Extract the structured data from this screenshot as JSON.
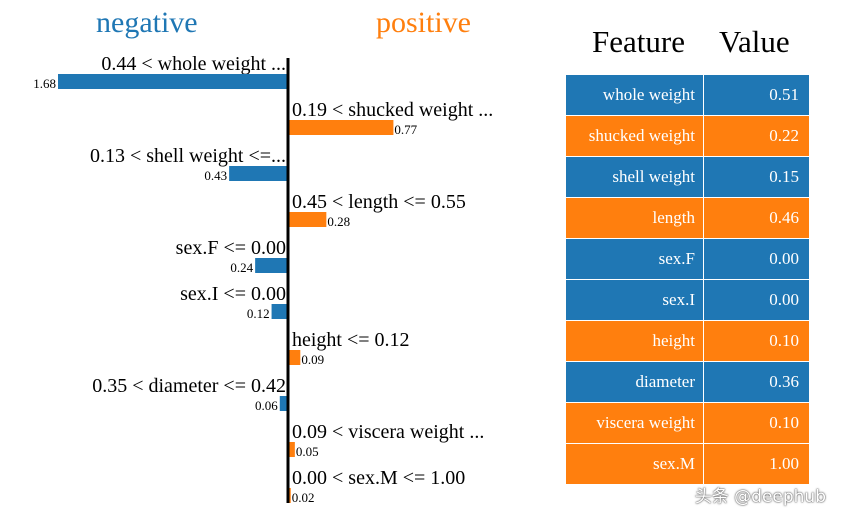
{
  "headings": {
    "negative": "negative",
    "positive": "positive"
  },
  "colors": {
    "negative": "#1f77b4",
    "positive": "#ff7f0e",
    "axis": "#000000"
  },
  "chart_data": {
    "type": "bar",
    "orientation": "horizontal",
    "xlim": [
      -1.68,
      1.68
    ],
    "categories": [
      "0.44 < whole weight ...",
      "0.19 < shucked weight ...",
      "0.13 < shell weight <=...",
      "0.45 < length <= 0.55",
      "sex.F <= 0.00",
      "sex.I <= 0.00",
      "height <= 0.12",
      "0.35 < diameter <= 0.42",
      "0.09 < viscera weight ...",
      "0.00 < sex.M <= 1.00"
    ],
    "values": [
      -1.68,
      0.77,
      -0.43,
      0.28,
      -0.24,
      -0.12,
      0.09,
      -0.06,
      0.05,
      0.02
    ],
    "value_labels": [
      "1.68",
      "0.77",
      "0.43",
      "0.28",
      "0.24",
      "0.12",
      "0.09",
      "0.06",
      "0.05",
      "0.02"
    ]
  },
  "table": {
    "headers": {
      "feature": "Feature",
      "value": "Value"
    },
    "rows": [
      {
        "feature": "whole weight",
        "value": "0.51",
        "color": "#1f77b4"
      },
      {
        "feature": "shucked weight",
        "value": "0.22",
        "color": "#ff7f0e"
      },
      {
        "feature": "shell weight",
        "value": "0.15",
        "color": "#1f77b4"
      },
      {
        "feature": "length",
        "value": "0.46",
        "color": "#ff7f0e"
      },
      {
        "feature": "sex.F",
        "value": "0.00",
        "color": "#1f77b4"
      },
      {
        "feature": "sex.I",
        "value": "0.00",
        "color": "#1f77b4"
      },
      {
        "feature": "height",
        "value": "0.10",
        "color": "#ff7f0e"
      },
      {
        "feature": "diameter",
        "value": "0.36",
        "color": "#1f77b4"
      },
      {
        "feature": "viscera weight",
        "value": "0.10",
        "color": "#ff7f0e"
      },
      {
        "feature": "sex.M",
        "value": "1.00",
        "color": "#ff7f0e"
      }
    ]
  },
  "watermark": "头条 @deephub"
}
